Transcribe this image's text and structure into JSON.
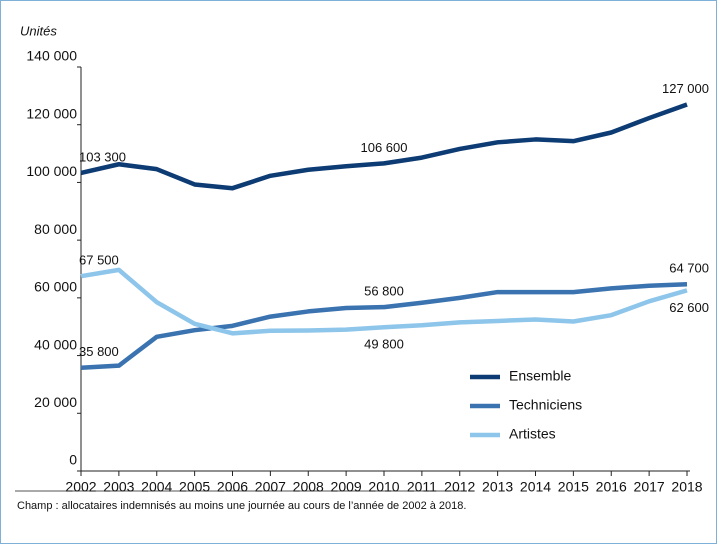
{
  "chart_data": {
    "type": "line",
    "y_label": "Unités",
    "footnote": "Champ : allocataires indemnisés au moins une journée au cours de l’année de 2002 à 2018.",
    "x": [
      2002,
      2003,
      2004,
      2005,
      2006,
      2007,
      2008,
      2009,
      2010,
      2011,
      2012,
      2013,
      2014,
      2015,
      2016,
      2017,
      2018
    ],
    "xlim": [
      2002,
      2018
    ],
    "ylim": [
      0,
      140000
    ],
    "yticks": [
      0,
      {
        "value": 20000,
        "label": "20 000"
      },
      {
        "value": 40000,
        "label": "40 000"
      },
      {
        "value": 60000,
        "label": "60 000"
      },
      {
        "value": 80000,
        "label": "80 000"
      },
      {
        "value": 100000,
        "label": "100 000"
      },
      {
        "value": 120000,
        "label": "120 000"
      },
      {
        "value": 140000,
        "label": "140 000"
      }
    ],
    "legend": "lower right",
    "series": [
      {
        "name": "Ensemble",
        "color": "#0d3b73",
        "values": [
          103300,
          106300,
          104600,
          99300,
          98000,
          102300,
          104400,
          105600,
          106600,
          108600,
          111600,
          113900,
          114900,
          114300,
          117300,
          122300,
          127000
        ],
        "value_labels": [
          "103 300",
          null,
          null,
          null,
          null,
          null,
          null,
          null,
          "106 600",
          null,
          null,
          null,
          null,
          null,
          null,
          null,
          "127 000"
        ]
      },
      {
        "name": "Techniciens",
        "color": "#3a73b0",
        "values": [
          35800,
          36500,
          46500,
          48800,
          50300,
          53500,
          55300,
          56500,
          56800,
          58300,
          60000,
          62000,
          62000,
          62000,
          63300,
          64200,
          64700
        ],
        "value_labels": [
          "35 800",
          null,
          null,
          null,
          null,
          null,
          null,
          null,
          "56 800",
          null,
          null,
          null,
          null,
          null,
          null,
          null,
          "64 700"
        ]
      },
      {
        "name": "Artistes",
        "color": "#8ec5ea",
        "values": [
          67500,
          69700,
          58500,
          51000,
          47700,
          48600,
          48700,
          49000,
          49800,
          50500,
          51500,
          52000,
          52500,
          51800,
          54000,
          58800,
          62600
        ],
        "value_labels": [
          "67 500",
          null,
          null,
          null,
          null,
          null,
          null,
          null,
          "49 800",
          null,
          null,
          null,
          null,
          null,
          null,
          null,
          "62 600"
        ]
      }
    ]
  }
}
